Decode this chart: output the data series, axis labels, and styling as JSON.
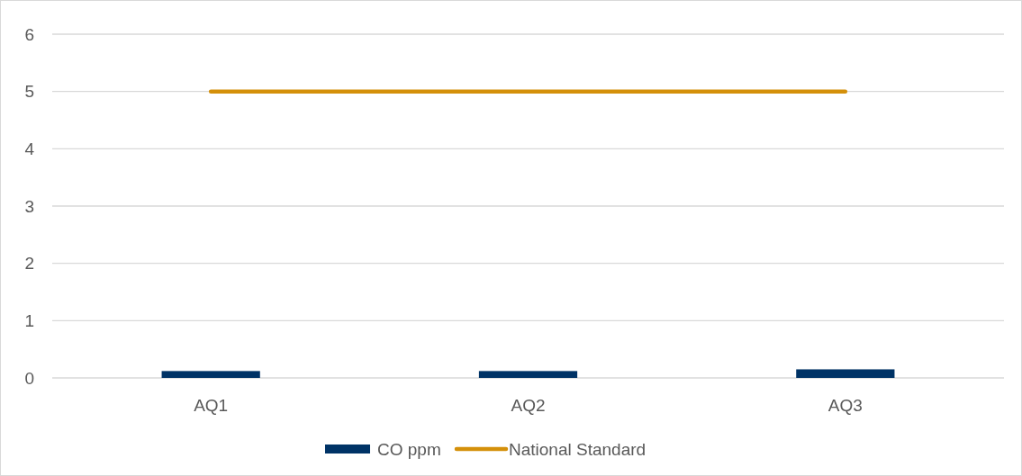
{
  "chart_data": {
    "type": "bar",
    "categories": [
      "AQ1",
      "AQ2",
      "AQ3"
    ],
    "series": [
      {
        "name": "CO ppm",
        "color": "#003366",
        "values": [
          0.12,
          0.12,
          0.15
        ]
      },
      {
        "name": "National Standard",
        "type": "line",
        "color": "#d4900a",
        "values": [
          5,
          5,
          5
        ]
      }
    ],
    "ylim": [
      0,
      6
    ],
    "yticks": [
      0,
      1,
      2,
      3,
      4,
      5,
      6
    ],
    "grid": "y",
    "legend": "bottom"
  }
}
